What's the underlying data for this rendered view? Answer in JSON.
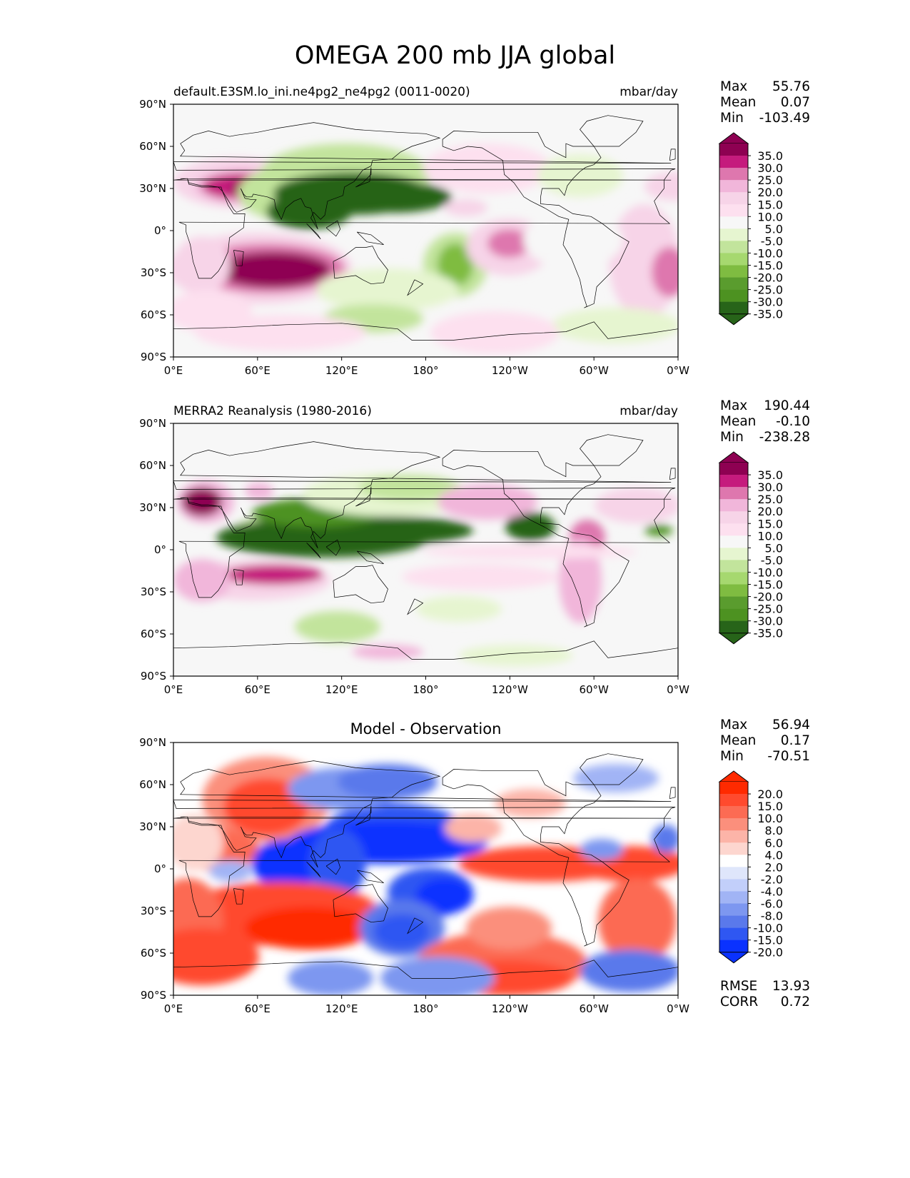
{
  "title": "OMEGA 200 mb JJA global",
  "colors": {
    "pink": [
      "#8e0152",
      "#c51b7d",
      "#de77ae",
      "#f1b6da",
      "#f7d4e8",
      "#fde0ef"
    ],
    "neutral": "#f7f7f7",
    "green": [
      "#e6f5d0",
      "#c2e49c",
      "#a6d86f",
      "#7fbc41",
      "#5a9c2e",
      "#4d9221",
      "#276419"
    ],
    "red": [
      "#ff2a00",
      "#ff4a2e",
      "#fc6b53",
      "#fb8f7c",
      "#fcb4a8",
      "#fdd6cf"
    ],
    "blue": [
      "#dfe6fb",
      "#c2cffa",
      "#a1b4f5",
      "#7d97f0",
      "#5a79eb",
      "#2f57f2",
      "#0a32ff"
    ]
  },
  "panels": [
    {
      "id": "model",
      "left_title": "default.E3SM.lo_ini.ne4pg2_ne4pg2 (0011-0020)",
      "right_title": "mbar/day",
      "center_title": "",
      "stats": [
        {
          "label": "Max",
          "value": "55.76"
        },
        {
          "label": "Mean",
          "value": "0.07"
        },
        {
          "label": "Min",
          "value": "-103.49"
        }
      ],
      "colorbar": {
        "scheme": "diverging-pink-green",
        "levels": [
          "35.0",
          "30.0",
          "25.0",
          "20.0",
          "15.0",
          "10.0",
          "5.0",
          "-5.0",
          "-10.0",
          "-15.0",
          "-20.0",
          "-25.0",
          "-30.0",
          "-35.0"
        ]
      },
      "extra_stats": []
    },
    {
      "id": "obs",
      "left_title": "MERRA2 Reanalysis (1980-2016)",
      "right_title": "mbar/day",
      "center_title": "",
      "stats": [
        {
          "label": "Max",
          "value": "190.44"
        },
        {
          "label": "Mean",
          "value": "-0.10"
        },
        {
          "label": "Min",
          "value": "-238.28"
        }
      ],
      "colorbar": {
        "scheme": "diverging-pink-green",
        "levels": [
          "35.0",
          "30.0",
          "25.0",
          "20.0",
          "15.0",
          "10.0",
          "5.0",
          "-5.0",
          "-10.0",
          "-15.0",
          "-20.0",
          "-25.0",
          "-30.0",
          "-35.0"
        ]
      },
      "extra_stats": []
    },
    {
      "id": "diff",
      "left_title": "",
      "right_title": "",
      "center_title": "Model - Observation",
      "stats": [
        {
          "label": "Max",
          "value": "56.94"
        },
        {
          "label": "Mean",
          "value": "0.17"
        },
        {
          "label": "Min",
          "value": "-70.51"
        }
      ],
      "colorbar": {
        "scheme": "diverging-red-blue",
        "levels": [
          "20.0",
          "15.0",
          "10.0",
          "8.0",
          "6.0",
          "4.0",
          "2.0",
          "-2.0",
          "-4.0",
          "-6.0",
          "-8.0",
          "-10.0",
          "-15.0",
          "-20.0"
        ]
      },
      "extra_stats": [
        {
          "label": "RMSE",
          "value": "13.93"
        },
        {
          "label": "CORR",
          "value": "0.72"
        }
      ]
    }
  ],
  "chart_data": {
    "type": "heatmap",
    "title": "OMEGA 200 mb JJA global",
    "variable": "OMEGA",
    "level": "200 mb",
    "season": "JJA",
    "units": "mbar/day",
    "xticks": [
      "0°E",
      "60°E",
      "120°E",
      "180°",
      "120°W",
      "60°W",
      "0°W"
    ],
    "yticks": [
      "90°N",
      "60°N",
      "30°N",
      "0°",
      "30°S",
      "60°S",
      "90°S"
    ],
    "lon_range": [
      0,
      360
    ],
    "lat_range": [
      -90,
      90
    ],
    "panels": [
      {
        "name": "default.E3SM.lo_ini.ne4pg2_ne4pg2 (0011-0020)",
        "max": 55.76,
        "mean": 0.07,
        "min": -103.49,
        "contour_levels": [
          -35,
          -30,
          -25,
          -20,
          -15,
          -10,
          -5,
          5,
          10,
          15,
          20,
          25,
          30,
          35
        ]
      },
      {
        "name": "MERRA2 Reanalysis (1980-2016)",
        "max": 190.44,
        "mean": -0.1,
        "min": -238.28,
        "contour_levels": [
          -35,
          -30,
          -25,
          -20,
          -15,
          -10,
          -5,
          5,
          10,
          15,
          20,
          25,
          30,
          35
        ]
      },
      {
        "name": "Model - Observation",
        "max": 56.94,
        "mean": 0.17,
        "min": -70.51,
        "rmse": 13.93,
        "corr": 0.72,
        "contour_levels": [
          -20,
          -15,
          -10,
          -8,
          -6,
          -4,
          -2,
          2,
          4,
          6,
          8,
          10,
          15,
          20
        ]
      }
    ]
  }
}
